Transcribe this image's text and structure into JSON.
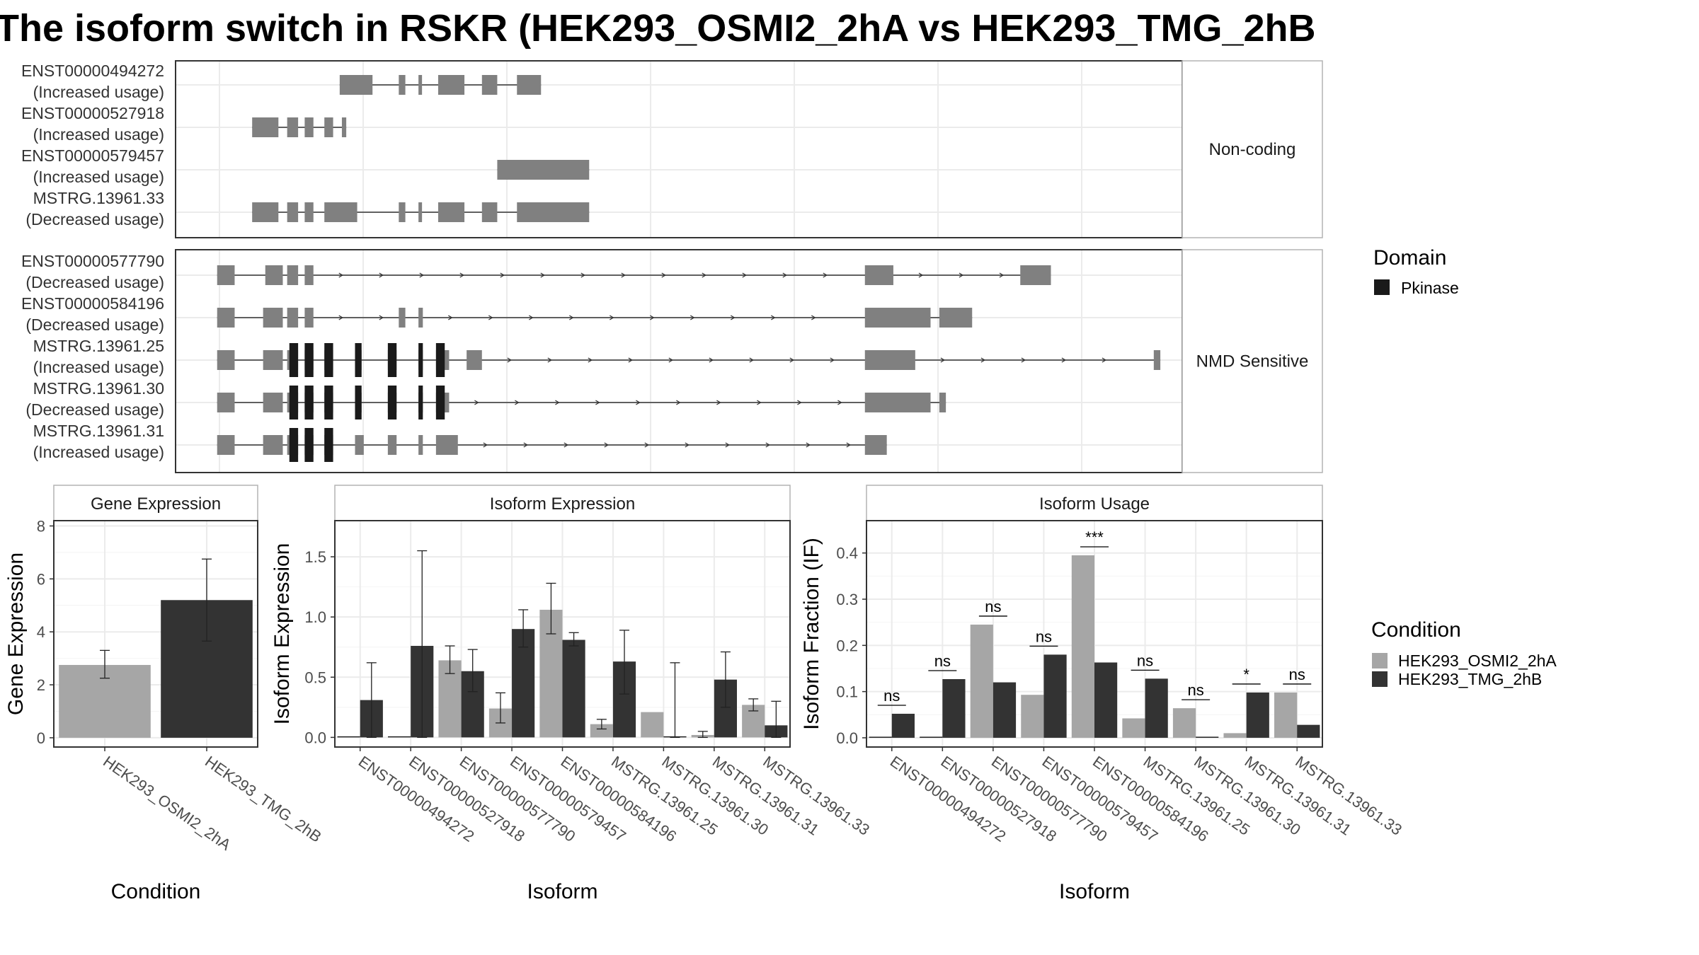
{
  "title": "The isoform switch in RSKR (HEK293_OSMI2_2hA vs HEK293_TMG_2hB",
  "structure": {
    "facets": [
      {
        "label": "Non-coding",
        "transcripts": [
          {
            "id": "ENST00000494272",
            "usage": "(Increased usage)",
            "exons": [
              [
                545,
                560
              ],
              [
                572,
                575
              ],
              [
                581,
                582
              ],
              [
                590,
                602
              ],
              [
                610,
                617
              ],
              [
                626,
                637
              ]
            ],
            "domain": [],
            "arrows": false
          },
          {
            "id": "ENST00000527918",
            "usage": "(Increased usage)",
            "exons": [
              [
                505,
                517
              ],
              [
                521,
                526
              ],
              [
                529,
                533
              ],
              [
                538,
                542
              ],
              [
                546,
                548
              ]
            ],
            "domain": [],
            "arrows": false
          },
          {
            "id": "ENST00000579457",
            "usage": "(Increased usage)",
            "exons": [
              [
                617,
                659
              ]
            ],
            "domain": [],
            "arrows": false
          },
          {
            "id": "MSTRG.13961.33",
            "usage": "(Decreased usage)",
            "exons": [
              [
                505,
                517
              ],
              [
                521,
                526
              ],
              [
                529,
                533
              ],
              [
                538,
                553
              ],
              [
                572,
                575
              ],
              [
                581,
                582
              ],
              [
                590,
                602
              ],
              [
                610,
                617
              ],
              [
                626,
                659
              ]
            ],
            "domain": [],
            "arrows": false
          }
        ]
      },
      {
        "label": "NMD Sensitive",
        "transcripts": [
          {
            "id": "ENST00000577790",
            "usage": "(Decreased usage)",
            "exons": [
              [
                489,
                497
              ],
              [
                511,
                519
              ],
              [
                521,
                526
              ],
              [
                529,
                533
              ],
              [
                785,
                798
              ],
              [
                856,
                870
              ]
            ],
            "domain": [],
            "arrows": true
          },
          {
            "id": "ENST00000584196",
            "usage": "(Decreased usage)",
            "exons": [
              [
                489,
                497
              ],
              [
                510,
                519
              ],
              [
                521,
                526
              ],
              [
                529,
                533
              ],
              [
                572,
                575
              ],
              [
                581,
                583
              ],
              [
                785,
                815
              ],
              [
                819,
                834
              ]
            ],
            "domain": [],
            "arrows": true
          },
          {
            "id": "MSTRG.13961.25",
            "usage": "(Increased usage)",
            "exons": [
              [
                489,
                497
              ],
              [
                510,
                519
              ],
              [
                521,
                526
              ],
              [
                529,
                533
              ],
              [
                538,
                542
              ],
              [
                552,
                555
              ],
              [
                567,
                571
              ],
              [
                581,
                583
              ],
              [
                589,
                595
              ],
              [
                603,
                610
              ],
              [
                785,
                808
              ],
              [
                917,
                920
              ]
            ],
            "domain": [
              [
                522,
                526
              ],
              [
                529,
                533
              ],
              [
                538,
                542
              ],
              [
                552,
                555
              ],
              [
                567,
                571
              ],
              [
                581,
                583
              ],
              [
                589,
                593
              ]
            ],
            "arrows": true
          },
          {
            "id": "MSTRG.13961.30",
            "usage": "(Decreased usage)",
            "exons": [
              [
                489,
                497
              ],
              [
                510,
                519
              ],
              [
                521,
                526
              ],
              [
                529,
                533
              ],
              [
                538,
                542
              ],
              [
                552,
                555
              ],
              [
                567,
                571
              ],
              [
                581,
                583
              ],
              [
                589,
                595
              ],
              [
                785,
                815
              ],
              [
                819,
                822
              ]
            ],
            "domain": [
              [
                522,
                526
              ],
              [
                529,
                533
              ],
              [
                538,
                542
              ],
              [
                552,
                555
              ],
              [
                567,
                571
              ],
              [
                581,
                583
              ],
              [
                589,
                593
              ]
            ],
            "arrows": true
          },
          {
            "id": "MSTRG.13961.31",
            "usage": "(Increased usage)",
            "exons": [
              [
                489,
                497
              ],
              [
                510,
                519
              ],
              [
                521,
                526
              ],
              [
                529,
                533
              ],
              [
                538,
                542
              ],
              [
                552,
                556
              ],
              [
                567,
                571
              ],
              [
                581,
                583
              ],
              [
                589,
                599
              ],
              [
                785,
                795
              ]
            ],
            "domain": [
              [
                522,
                526
              ],
              [
                529,
                533
              ],
              [
                538,
                542
              ]
            ],
            "arrows": true
          }
        ]
      }
    ],
    "domain_legend": {
      "title": "Domain",
      "items": [
        {
          "label": "Pkinase",
          "color": "#1a1a1a"
        }
      ]
    },
    "exon_color": "#808080",
    "domain_color": "#1a1a1a"
  },
  "chart_data": [
    {
      "type": "bar",
      "title": "Gene Expression",
      "xlabel": "Condition",
      "ylabel": "Gene Expression",
      "ylim": [
        -0.35,
        8.2
      ],
      "yticks": [
        0,
        2,
        4,
        6,
        8
      ],
      "categories": [
        "HEK293_OSMI2_2hA",
        "HEK293_TMG_2hB"
      ],
      "values": [
        2.75,
        5.2
      ],
      "errors": [
        [
          2.25,
          3.3
        ],
        [
          3.65,
          6.75
        ]
      ],
      "colors": [
        "#a6a6a6",
        "#333333"
      ]
    },
    {
      "type": "bar",
      "title": "Isoform Expression",
      "xlabel": "Isoform",
      "ylabel": "Isoform Expression",
      "ylim": [
        -0.08,
        1.8
      ],
      "yticks": [
        0.0,
        0.5,
        1.0,
        1.5
      ],
      "categories": [
        "ENST00000494272",
        "ENST00000527918",
        "ENST00000577790",
        "ENST00000579457",
        "ENST00000584196",
        "MSTRG.13961.25",
        "MSTRG.13961.30",
        "MSTRG.13961.31",
        "MSTRG.13961.33"
      ],
      "series": [
        {
          "name": "HEK293_OSMI2_2hA",
          "values": [
            0.0,
            0.0,
            0.64,
            0.24,
            1.06,
            0.11,
            0.21,
            0.02,
            0.27
          ],
          "errors": [
            null,
            null,
            [
              0.53,
              0.76
            ],
            [
              0.12,
              0.37
            ],
            [
              0.86,
              1.28
            ],
            [
              0.07,
              0.15
            ],
            null,
            [
              0.0,
              0.05
            ],
            [
              0.22,
              0.32
            ]
          ]
        },
        {
          "name": "HEK293_TMG_2hB",
          "values": [
            0.31,
            0.76,
            0.55,
            0.9,
            0.81,
            0.63,
            0.0,
            0.48,
            0.1
          ],
          "errors": [
            [
              0.0,
              0.62
            ],
            [
              0.0,
              1.55
            ],
            [
              0.38,
              0.73
            ],
            [
              0.75,
              1.06
            ],
            [
              0.76,
              0.87
            ],
            [
              0.36,
              0.89
            ],
            [
              0.0,
              0.62
            ],
            [
              0.25,
              0.71
            ],
            [
              0.0,
              0.3
            ]
          ]
        }
      ]
    },
    {
      "type": "bar",
      "title": "Isoform Usage",
      "xlabel": "Isoform",
      "ylabel": "Isoform Fraction (IF)",
      "ylim": [
        -0.02,
        0.47
      ],
      "yticks": [
        0.0,
        0.1,
        0.2,
        0.3,
        0.4
      ],
      "categories": [
        "ENST00000494272",
        "ENST00000527918",
        "ENST00000577790",
        "ENST00000579457",
        "ENST00000584196",
        "MSTRG.13961.25",
        "MSTRG.13961.30",
        "MSTRG.13961.31",
        "MSTRG.13961.33"
      ],
      "series": [
        {
          "name": "HEK293_OSMI2_2hA",
          "values": [
            0.0,
            0.0,
            0.245,
            0.093,
            0.395,
            0.042,
            0.064,
            0.01,
            0.098
          ]
        },
        {
          "name": "HEK293_TMG_2hB",
          "values": [
            0.052,
            0.127,
            0.12,
            0.18,
            0.163,
            0.128,
            0.0,
            0.098,
            0.028
          ]
        }
      ],
      "significance": [
        "ns",
        "ns",
        "ns",
        "ns",
        "***",
        "ns",
        "ns",
        "*",
        "ns"
      ]
    }
  ],
  "condition_legend": {
    "title": "Condition",
    "items": [
      {
        "label": "HEK293_OSMI2_2hA",
        "color": "#a6a6a6"
      },
      {
        "label": "HEK293_TMG_2hB",
        "color": "#333333"
      }
    ]
  }
}
